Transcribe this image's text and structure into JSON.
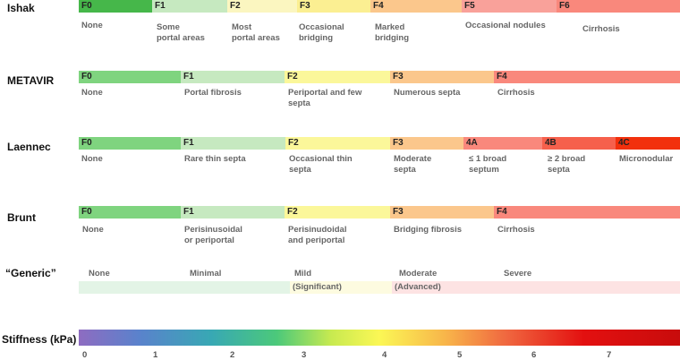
{
  "scales": {
    "ishak": {
      "name": "Ishak",
      "stages": [
        {
          "label": "F0",
          "color": "#46b74a"
        },
        {
          "label": "F1",
          "color": "#c6e9c0"
        },
        {
          "label": "F2",
          "color": "#fbf6c0"
        },
        {
          "label": "F3",
          "color": "#fbef92"
        },
        {
          "label": "F4",
          "color": "#fbc78c"
        },
        {
          "label": "F5",
          "color": "#f9a19a"
        },
        {
          "label": "F6",
          "color": "#f9887c"
        }
      ],
      "descriptions": [
        "None",
        "Some\nportal areas",
        "Most\nportal areas",
        "Occasional\nbridging",
        "Marked\nbridging",
        "Occasional nodules",
        "Cirrhosis"
      ]
    },
    "metavir": {
      "name": "METAVIR",
      "stages": [
        {
          "label": "F0",
          "color": "#7fd47f"
        },
        {
          "label": "F1",
          "color": "#c6e9c0"
        },
        {
          "label": "F2",
          "color": "#fbf79a"
        },
        {
          "label": "F3",
          "color": "#fbc78c"
        },
        {
          "label": "F4",
          "color": "#f9887c"
        }
      ],
      "descriptions": [
        "None",
        "Portal fibrosis",
        "Periportal and few\nsepta",
        "Numerous septa",
        "Cirrhosis"
      ]
    },
    "laennec": {
      "name": "Laennec",
      "stages": [
        {
          "label": "F0",
          "color": "#7fd47f"
        },
        {
          "label": "F1",
          "color": "#c6e9c0"
        },
        {
          "label": "F2",
          "color": "#fbf79a"
        },
        {
          "label": "F3",
          "color": "#fbc78c"
        },
        {
          "label": "4A",
          "color": "#f9887c"
        },
        {
          "label": "4B",
          "color": "#f6604c"
        },
        {
          "label": "4C",
          "color": "#f2300c"
        }
      ],
      "descriptions": [
        "None",
        "Rare thin septa",
        "Occasional thin\nsepta",
        "Moderate\nsepta",
        "≤ 1 broad\nseptum",
        "≥ 2 broad\nsepta",
        "Micronodular"
      ]
    },
    "brunt": {
      "name": "Brunt",
      "stages": [
        {
          "label": "F0",
          "color": "#7fd47f"
        },
        {
          "label": "F1",
          "color": "#c6e9c0"
        },
        {
          "label": "F2",
          "color": "#fbf79a"
        },
        {
          "label": "F3",
          "color": "#fbc78c"
        },
        {
          "label": "F4",
          "color": "#f9887c"
        }
      ],
      "descriptions": [
        "None",
        "Perisinusoidal\nor periportal",
        "Perisinudoidal\nand periportal",
        "Bridging fibrosis",
        "Cirrhosis"
      ]
    }
  },
  "generic": {
    "name": "“Generic”",
    "levels": [
      "None",
      "Minimal",
      "Mild",
      "Moderate",
      "Severe"
    ],
    "boxes": [
      {
        "label": "",
        "color": "#e3f4e6"
      },
      {
        "label": "(Significant)",
        "color": "#fdfbe0"
      },
      {
        "label": "(Advanced)",
        "color": "#fde3e3"
      }
    ]
  },
  "stiffness": {
    "name": "Stiffness (kPa)",
    "ticks": [
      "0",
      "1",
      "2",
      "3",
      "4",
      "5",
      "6",
      "7"
    ]
  }
}
